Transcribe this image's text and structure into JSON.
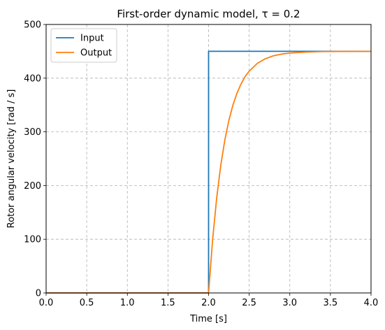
{
  "chart_data": {
    "type": "line",
    "title": "First-order dynamic model, τ = 0.2",
    "xlabel": "Time [s]",
    "ylabel": "Rotor angular velocity [rad / s]",
    "xlim": [
      0,
      4
    ],
    "ylim": [
      0,
      500
    ],
    "xticks": [
      0.0,
      0.5,
      1.0,
      1.5,
      2.0,
      2.5,
      3.0,
      3.5,
      4.0
    ],
    "xtick_labels": [
      "0.0",
      "0.5",
      "1.0",
      "1.5",
      "2.0",
      "2.5",
      "3.0",
      "3.5",
      "4.0"
    ],
    "yticks": [
      0,
      100,
      200,
      300,
      400,
      500
    ],
    "ytick_labels": [
      "0",
      "100",
      "200",
      "300",
      "400",
      "500"
    ],
    "grid": true,
    "legend_position": "top-left",
    "tau": 0.2,
    "series": [
      {
        "name": "Input",
        "color": "#1f77b4",
        "x": [
          0,
          2.0,
          2.0,
          4.0
        ],
        "y": [
          0,
          0,
          450,
          450
        ]
      },
      {
        "name": "Output",
        "color": "#ff7f0e",
        "x": [
          0,
          2.0,
          2.05,
          2.1,
          2.15,
          2.2,
          2.25,
          2.3,
          2.35,
          2.4,
          2.45,
          2.5,
          2.6,
          2.7,
          2.8,
          2.9,
          3.0,
          3.2,
          3.4,
          3.6,
          3.8,
          4.0
        ],
        "y": [
          0,
          0,
          99.5,
          177.1,
          237.5,
          284.6,
          321.3,
          349.9,
          372.1,
          389.4,
          402.9,
          413.1,
          427.6,
          436.3,
          441.7,
          444.9,
          446.8,
          448.6,
          449.5,
          449.8,
          449.9,
          450.0
        ]
      }
    ]
  }
}
